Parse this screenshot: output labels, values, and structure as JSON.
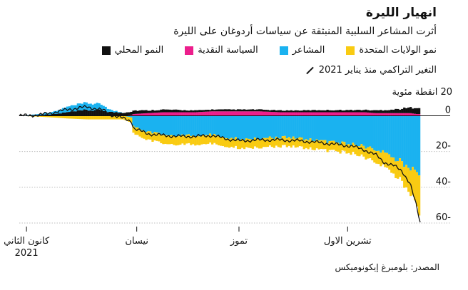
{
  "title": "انهيار الليرة",
  "subtitle": "أثرت المشاعر السلبية المنبثقة عن سياسات أردوغان على الليرة",
  "legend": [
    {
      "label": "النمو المحلي",
      "color": "#111111",
      "icon": "square-swatch-icon"
    },
    {
      "label": "السياسة النقدية",
      "color": "#ec1e8c",
      "icon": "square-swatch-icon"
    },
    {
      "label": "المشاعر",
      "color": "#1ab2f0",
      "icon": "square-swatch-icon"
    },
    {
      "label": "نمو الولايات المتحدة",
      "color": "#f9cb12",
      "icon": "square-swatch-icon"
    }
  ],
  "legend_line": {
    "label": "التغير التراكمي منذ يناير 2021",
    "icon": "diagonal-line-icon"
  },
  "unit_label": "20 انقطة مئوية",
  "source": "المصدر: بلومبرغ إيكونوميكس",
  "chart_data": {
    "type": "bar",
    "stacked": true,
    "title": "انهيار الليرة",
    "ylabel": "20 انقطة مئوية",
    "ylim": [
      -62,
      5
    ],
    "y_ticks": [
      {
        "v": 0,
        "label": "0"
      },
      {
        "v": -20,
        "label": "20-"
      },
      {
        "v": -40,
        "label": "40-"
      },
      {
        "v": -60,
        "label": "60-"
      }
    ],
    "x_ticks": [
      {
        "t": 0.018,
        "label": "كانون الثاني",
        "sub": "2021"
      },
      {
        "t": 0.293,
        "label": "نيسان",
        "sub": ""
      },
      {
        "t": 0.548,
        "label": "تموز",
        "sub": ""
      },
      {
        "t": 0.819,
        "label": "تشرين الاول",
        "sub": ""
      }
    ],
    "x_domain": [
      0,
      1
    ],
    "x_date_range": [
      "كانون الثاني 2021",
      "تشرين الثاني 2021"
    ],
    "keypoints": {
      "t": [
        0.0,
        0.05,
        0.09,
        0.12,
        0.17,
        0.21,
        0.23,
        0.26,
        0.28,
        0.285,
        0.32,
        0.36,
        0.4,
        0.44,
        0.48,
        0.52,
        0.55,
        0.6,
        0.65,
        0.7,
        0.75,
        0.79,
        0.83,
        0.86,
        0.89,
        0.91,
        0.935,
        0.955,
        0.975,
        0.99,
        1.0
      ],
      "domestic": [
        0.0,
        0.5,
        1.0,
        2.0,
        3.2,
        3.0,
        2.0,
        1.8,
        2.0,
        2.0,
        1.5,
        1.5,
        1.2,
        1.0,
        1.0,
        1.0,
        1.0,
        1.0,
        1.0,
        1.0,
        1.2,
        1.2,
        1.2,
        1.3,
        1.5,
        1.8,
        2.0,
        2.5,
        3.0,
        4.0,
        3.5
      ],
      "monetary": [
        0.0,
        0.0,
        0.0,
        0.0,
        0.0,
        0.0,
        0.0,
        0.0,
        0.5,
        1.0,
        1.5,
        2.0,
        2.0,
        2.0,
        2.5,
        2.5,
        2.5,
        2.5,
        2.0,
        2.0,
        2.0,
        2.0,
        2.0,
        2.0,
        1.5,
        1.5,
        1.5,
        1.5,
        1.5,
        1.0,
        1.0
      ],
      "sentiment": [
        0.0,
        0.5,
        1.5,
        3.0,
        4.0,
        3.0,
        1.0,
        0.0,
        -1.0,
        -6.0,
        -9.0,
        -10.5,
        -11.0,
        -11.0,
        -10.5,
        -12.0,
        -13.0,
        -12.5,
        -12.0,
        -12.5,
        -14.0,
        -15.0,
        -16.0,
        -17.0,
        -19.0,
        -21.0,
        -24.0,
        -26.0,
        -29.0,
        -33.0,
        -35.0
      ],
      "us": [
        0.0,
        -0.5,
        -1.0,
        -1.5,
        -2.0,
        -2.0,
        -2.0,
        -2.0,
        -3.0,
        -4.0,
        -4.5,
        -5.0,
        -5.0,
        -5.0,
        -5.0,
        -5.0,
        -5.0,
        -5.0,
        -5.0,
        -5.0,
        -5.0,
        -5.0,
        -5.0,
        -6.0,
        -7.0,
        -8.0,
        -9.0,
        -11.0,
        -14.0,
        -18.0,
        -24.0
      ],
      "cumulative": [
        0.0,
        0.5,
        2.0,
        3.5,
        5.0,
        3.0,
        0.5,
        -1.5,
        -3.0,
        -7.0,
        -10.0,
        -11.0,
        -11.5,
        -11.5,
        -11.0,
        -13.0,
        -14.0,
        -13.5,
        -13.5,
        -14.0,
        -15.0,
        -16.0,
        -17.0,
        -19.0,
        -22.0,
        -26.0,
        -28.0,
        -31.0,
        -38.0,
        -50.0,
        -60.0
      ]
    },
    "n_bars": 188
  }
}
